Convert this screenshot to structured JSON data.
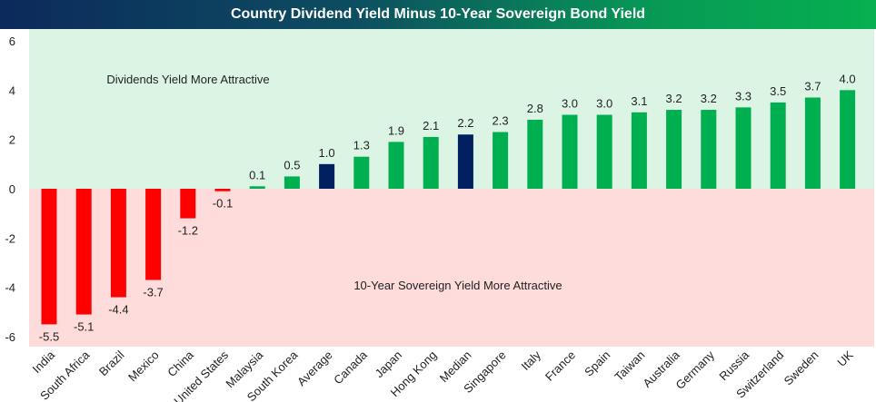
{
  "chart_data": {
    "type": "bar",
    "title": "Country Dividend Yield Minus 10-Year Sovereign Bond Yield",
    "xlabel": "",
    "ylabel": "",
    "ylim": [
      -6,
      6
    ],
    "yticks": [
      6,
      4,
      2,
      0,
      -2,
      -4,
      -6
    ],
    "grid": false,
    "categories": [
      "India",
      "South Africa",
      "Brazil",
      "Mexico",
      "China",
      "United States",
      "Malaysia",
      "South Korea",
      "Average",
      "Canada",
      "Japan",
      "Hong Kong",
      "Median",
      "Singapore",
      "Italy",
      "France",
      "Spain",
      "Taiwan",
      "Australia",
      "Germany",
      "Russia",
      "Switzerland",
      "Sweden",
      "UK"
    ],
    "values": [
      -5.5,
      -5.1,
      -4.4,
      -3.7,
      -1.2,
      -0.1,
      0.1,
      0.5,
      1.0,
      1.3,
      1.9,
      2.1,
      2.2,
      2.3,
      2.8,
      3.0,
      3.0,
      3.1,
      3.2,
      3.2,
      3.3,
      3.5,
      3.7,
      4.0
    ],
    "data_labels": [
      "-5.5",
      "-5.1",
      "-4.4",
      "-3.7",
      "-1.2",
      "-0.1",
      "0.1",
      "0.5",
      "1.0",
      "1.3",
      "1.9",
      "2.1",
      "2.2",
      "2.3",
      "2.8",
      "3.0",
      "3.0",
      "3.1",
      "3.2",
      "3.2",
      "3.3",
      "3.5",
      "3.7",
      "4.0"
    ],
    "highlighted": [
      "Average",
      "Median"
    ],
    "annotations": {
      "positive_region": "Dividends Yield More Attractive",
      "negative_region": "10-Year Sovereign Yield More Attractive"
    },
    "colors": {
      "positive": "#00b050",
      "negative": "#ff0000",
      "highlight": "#002060",
      "positive_bg": "#dbf4e3",
      "negative_bg": "#fddcdb"
    }
  }
}
